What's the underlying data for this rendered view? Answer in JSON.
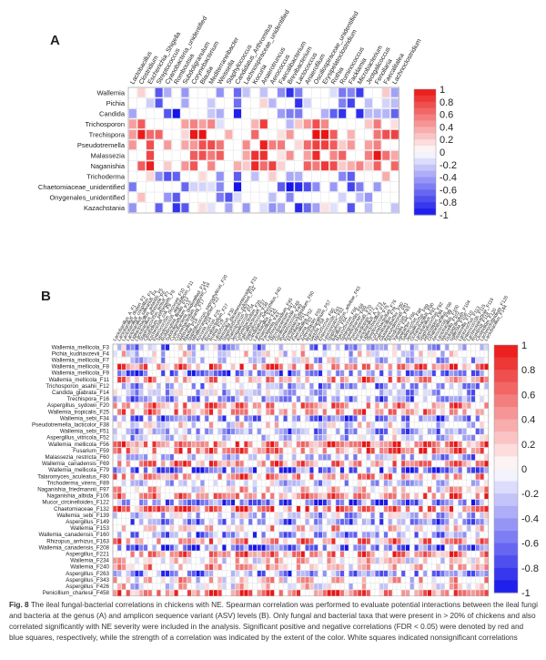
{
  "panelA": {
    "letter": "A",
    "columns": [
      "Lactobacillus",
      "Clostridium",
      "Escherichia_Shigella",
      "Streptococcus",
      "Cyanobacteria_unidentified",
      "Romboutsia",
      "Subdoligranulum",
      "Corynebacterium",
      "Blautia",
      "Mediterraneibacter",
      "Weissella",
      "Staphylococcus",
      "Candidatus_Arthromitus",
      "Lachnospiraceae_unidentified",
      "Kocuria",
      "Anaerotruncus",
      "Aerococcus",
      "Faecalibacterium",
      "Brevibacterium",
      "Lactococcus",
      "Anaerofilum",
      "Oscillospiraceae_unidentified",
      "Erysipelatoclostridium",
      "Rothia",
      "Ruminococcus",
      "Facklamia",
      "Microbacterium",
      "Jeotgalicoccus",
      "Fenollaria",
      "Faecalitalea",
      "Lachnoclostridium"
    ],
    "rows": [
      "Wallemia",
      "Pichia",
      "Candida",
      "Trichosporon",
      "Trechispora",
      "Pseudotremella",
      "Malassezia",
      "Naganishia",
      "Trichoderma",
      "Chaetomiaceae_unidentified",
      "Onygenales_unidentified",
      "Kazachstania"
    ],
    "colorbar_ticks": [
      "1",
      "0.8",
      "0.6",
      "0.4",
      "0.2",
      "0",
      "-0.2",
      "-0.4",
      "-0.6",
      "-0.8",
      "-1"
    ]
  },
  "panelB": {
    "letter": "B",
    "columns": [
      "Lactobacillus_A_F1",
      "Lactobacillus_reuteri_F2",
      "Lactobacillus_crispatus_F3",
      "Lactobacillus_salivarius_F4",
      "Ligilactobacillus_aviarius_F5",
      "Lactobacillus_johnsonii_F6",
      "Staphylococcus_lentus_F7",
      "Clostridium_perfringens_F8",
      "Escherichia_coli_F9",
      "Enterococcus_cecorum_F10",
      "Streptococcus_alactolyticus_F11",
      "Romboutsia_ilealis_F12",
      "Subdoligranulum_F13",
      "Cyanobacteria_unidentified_F14",
      "Corynebacterium_stationis_F16",
      "Weissella_cibaria_F17",
      "Blautia_F18",
      "Staphylococcus_saprophyticus_F20",
      "Mediterraneibacter_F22",
      "Kocuria_F24",
      "Aerococcus_F25",
      "Brevibacterium_F27",
      "Rothia_F29",
      "Lactococcus_F30",
      "Weissella_paramesenteroides_F31",
      "Staphylococcus_xylosus_F32",
      "Anaerotruncus_F33",
      "Jeotgalicoccus_F34",
      "Corynebacterium_F35",
      "Faecalibacterium_F37",
      "Staphylococcus_F39",
      "Candidatus_Arthromitus_F40",
      "Lactobacillus_F41",
      "Anaerofilum_F42",
      "Facklamia_F43",
      "Lachnoclostridium_F45",
      "Microbacterium_F47",
      "Oscillospiraceae_F48",
      "Ruminococcus_F49",
      "Erysipelatoclostridium_F50",
      "Fenollaria_F51",
      "Faecalitalea_F52",
      "Kocuria_F53",
      "Arthrobacter_F55",
      "Brachybacterium_F57",
      "Dietzia_F58",
      "Micrococcus_F60",
      "Enterococcus_F61",
      "Leuconostoc_F62",
      "Staphylococcus_arlettae_F63",
      "Bacillus_F64",
      "Macrococcus_F66",
      "Sphingomonas_F68",
      "Acinetobacter_F69",
      "Pseudomonas_F70",
      "Nocardiopsis_F72",
      "Lactobacillus_A_F73",
      "Ligilactobacillus_F74",
      "Streptococcus_F75",
      "Corynebacterium_F76",
      "Paenibacillus_F78",
      "Glutamicibacter_F80",
      "Brevundimonas_F81",
      "Rhodococcus_F83",
      "Yaniella_F84",
      "Janibacter_F86",
      "Salinicoccus_F88",
      "Jeotgalicoccus_F89",
      "Oceanobacillus_F90",
      "Lactobacillus_F91",
      "Staphylococcus_F92",
      "Atopostipes_F94",
      "Ornithinibacillus_F96",
      "Aerococcus_F99",
      "Lactobacillus_F100",
      "Weissella_F102",
      "Dolosigranulum_F104",
      "Gallicola_F106",
      "Tissierella_F110",
      "Lactococcus_F113",
      "Enterococcus_F115",
      "Lachnospiraceae_F116",
      "Rombout_F118",
      "Clostridium_F120",
      "Lachnoclostridium_F126",
      "Lactobacillus_F144"
    ],
    "rows": [
      "Wallemia_mellicola_F3",
      "Pichia_kudriavzevii_F4",
      "Wallemia_mellicola_F7",
      "Wallemia_mellicola_F8",
      "Wallemia_mellicola_F9",
      "Wallemia_mellicola_F11",
      "Trichosporon_asahii_F12",
      "Candida_glabrata_F14",
      "Trechispora_F16",
      "Aspergillus_sydowii_F20",
      "Wallemia_tropicalis_F25",
      "Wallemia_sebi_F34",
      "Pseudotremella_lacticolor_F38",
      "Wallemia_sebi_F51",
      "Aspergillus_vitricola_F52",
      "Wallemia_mellicola_F56",
      "Fusarium_F59",
      "Malassezia_restricta_F60",
      "Wallemia_canadensis_F69",
      "Wallemia_mellicola_F79",
      "Talaromyces_aculeatus_F80",
      "Trichoderma_virens_F89",
      "Naganishia_friedmannii_F97",
      "Naganishia_albida_F106",
      "Mucor_circinelloides_F122",
      "Chaetomiaceae_F132",
      "Wallemia_sebi_F139",
      "Aspergillus_F149",
      "Wallemia_F153",
      "Wallemia_canadensis_F160",
      "Rhizopus_arrhizus_F163",
      "Wallemia_canadensis_F208",
      "Aspergillus_F221",
      "Wallemia_F234",
      "Wallemia_F240",
      "Aspergillus_F263",
      "Aspergillus_F343",
      "Aspergillus_F426",
      "Penicillium_charlesii_F458"
    ],
    "colorbar_ticks": [
      "1",
      "0.8",
      "0.6",
      "0.4",
      "0.2",
      "0",
      "-0.2",
      "-0.4",
      "-0.6",
      "-0.8",
      "-1"
    ]
  },
  "caption": {
    "fig_label": "Fig. 8",
    "text": " The ileal fungal-bacterial correlations in chickens with NE. Spearman correlation was performed to evaluate potential interactions between the ileal fungi and bacteria at the genus (A) and amplicon sequence variant (ASV) levels (B). Only fungal and bacterial taxa that were present in > 20% of chickens and also correlated significantly with NE severity were included in the analysis. Significant positive and negative correlations (FDR < 0.05) were denoted by red and blue squares, respectively, while the strength of a correlation was indicated by the extent of the color. White squares indicated nonsignificant correlations"
  }
}
